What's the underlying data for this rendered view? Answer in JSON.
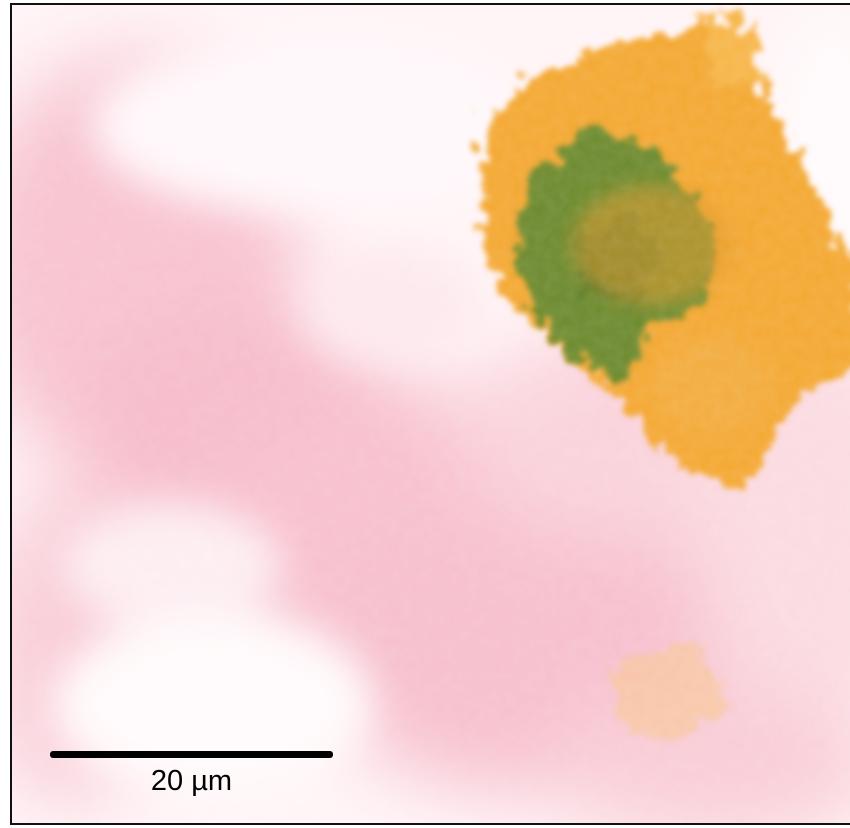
{
  "image": {
    "description_colors": {
      "background": "#fff6f8",
      "pink_tissue": "#f7b8c8",
      "orange_region": "#f4a62a",
      "green_region": "#5f7f2e",
      "frame": "#111111",
      "scale_bar": "#000000"
    }
  },
  "scale_bar": {
    "label": "20 µm"
  }
}
